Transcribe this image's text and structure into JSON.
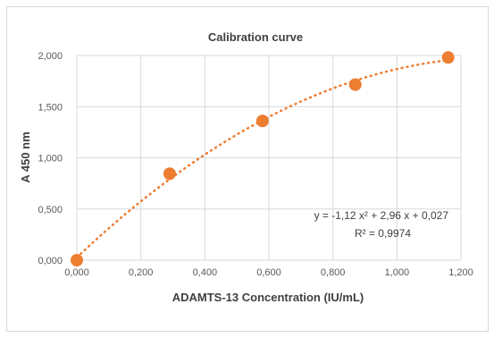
{
  "chart_data": {
    "type": "scatter",
    "title": "Calibration curve",
    "xlabel": "ADAMTS-13 Concentration (IU/mL)",
    "ylabel": "A 450 nm",
    "xlim": [
      0,
      1.2
    ],
    "ylim": [
      0,
      2.0
    ],
    "x_ticks": [
      "0,000",
      "0,200",
      "0,400",
      "0,600",
      "0,800",
      "1,000",
      "1,200"
    ],
    "y_ticks": [
      "0,000",
      "0,500",
      "1,000",
      "1,500",
      "2,000"
    ],
    "grid": true,
    "series": [
      {
        "points": [
          {
            "x": 0.0,
            "y": 0.0
          },
          {
            "x": 0.29,
            "y": 0.845
          },
          {
            "x": 0.58,
            "y": 1.36
          },
          {
            "x": 0.87,
            "y": 1.715
          },
          {
            "x": 1.16,
            "y": 1.98
          }
        ],
        "color": "#ed7d31"
      }
    ],
    "trendline": {
      "type": "polynomial",
      "order": 2,
      "coefficients": [
        -1.12,
        2.96,
        0.027
      ],
      "style": "dotted",
      "color": "#ed7d31"
    },
    "annotations": {
      "equation": "y = -1,12 x² + 2,96 x + 0,027",
      "r2": "R² = 0,9974"
    }
  }
}
